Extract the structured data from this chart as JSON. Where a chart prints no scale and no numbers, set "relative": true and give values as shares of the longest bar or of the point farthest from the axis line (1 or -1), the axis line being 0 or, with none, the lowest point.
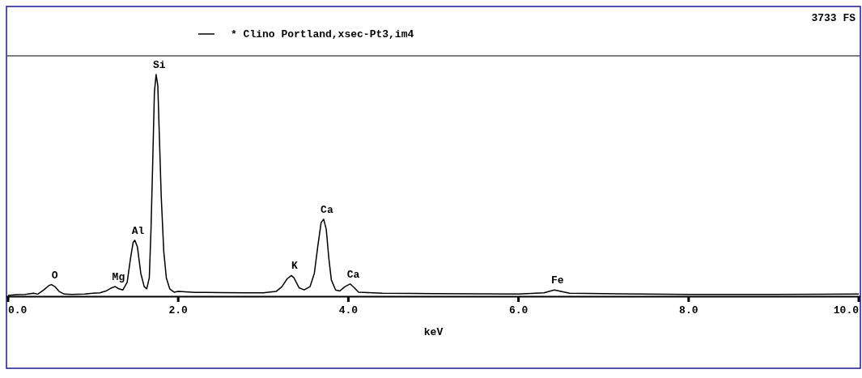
{
  "chart_data": {
    "type": "line",
    "relative": true,
    "xlabel": "keV",
    "xlim": [
      0,
      10
    ],
    "xticks": [
      {
        "value": 0,
        "label": "0.0"
      },
      {
        "value": 2,
        "label": "2.0"
      },
      {
        "value": 4,
        "label": "4.0"
      },
      {
        "value": 6,
        "label": "6.0"
      },
      {
        "value": 8,
        "label": "8.0"
      },
      {
        "value": 10,
        "label": "10.0"
      }
    ],
    "legend": "top",
    "grid": false,
    "tick_labels": "x",
    "series": [
      {
        "name": "* Clino Portland,xsec-Pt3,im4",
        "color": "#000000",
        "x": [
          0.0,
          0.1,
          0.2,
          0.3,
          0.35,
          0.42,
          0.48,
          0.51,
          0.55,
          0.6,
          0.66,
          0.75,
          0.9,
          1.0,
          1.08,
          1.15,
          1.22,
          1.26,
          1.3,
          1.35,
          1.4,
          1.44,
          1.47,
          1.49,
          1.52,
          1.56,
          1.6,
          1.63,
          1.66,
          1.68,
          1.7,
          1.72,
          1.74,
          1.76,
          1.78,
          1.8,
          1.83,
          1.86,
          1.9,
          1.95,
          2.0,
          2.2,
          2.5,
          2.8,
          3.0,
          3.15,
          3.22,
          3.28,
          3.33,
          3.36,
          3.42,
          3.48,
          3.55,
          3.6,
          3.64,
          3.68,
          3.71,
          3.74,
          3.77,
          3.8,
          3.85,
          3.9,
          3.96,
          4.02,
          4.07,
          4.12,
          4.4,
          5.0,
          5.5,
          6.0,
          6.3,
          6.42,
          6.5,
          6.6,
          7.0,
          8.0,
          9.0,
          10.0
        ],
        "values": [
          0,
          0.004,
          0.005,
          0.01,
          0.006,
          0.025,
          0.045,
          0.049,
          0.04,
          0.018,
          0.006,
          0.005,
          0.006,
          0.01,
          0.012,
          0.02,
          0.035,
          0.04,
          0.03,
          0.025,
          0.06,
          0.17,
          0.24,
          0.25,
          0.22,
          0.1,
          0.04,
          0.03,
          0.08,
          0.3,
          0.6,
          0.92,
          1.0,
          0.95,
          0.7,
          0.45,
          0.2,
          0.08,
          0.03,
          0.015,
          0.018,
          0.014,
          0.013,
          0.012,
          0.012,
          0.018,
          0.04,
          0.075,
          0.09,
          0.08,
          0.035,
          0.025,
          0.04,
          0.1,
          0.22,
          0.33,
          0.345,
          0.3,
          0.17,
          0.07,
          0.025,
          0.02,
          0.04,
          0.052,
          0.035,
          0.015,
          0.01,
          0.008,
          0.007,
          0.006,
          0.012,
          0.025,
          0.018,
          0.01,
          0.008,
          0.005,
          0.005,
          0.006
        ]
      }
    ],
    "annotations": [
      "3733 FS",
      {
        "text": "O",
        "x": 0.51,
        "y": 0.049
      },
      {
        "text": "Mg",
        "x": 1.26,
        "y": 0.04
      },
      {
        "text": "Al",
        "x": 1.49,
        "y": 0.25
      },
      {
        "text": "Si",
        "x": 1.74,
        "y": 1.0
      },
      {
        "text": "K",
        "x": 3.33,
        "y": 0.09
      },
      {
        "text": "Ca",
        "x": 3.71,
        "y": 0.345
      },
      {
        "text": "Ca",
        "x": 4.02,
        "y": 0.052
      },
      {
        "text": "Fe",
        "x": 6.42,
        "y": 0.025
      }
    ]
  }
}
